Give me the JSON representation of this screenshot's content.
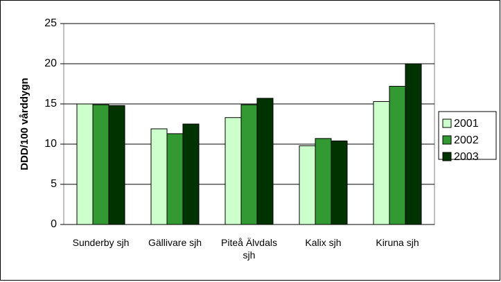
{
  "chart_data": {
    "type": "bar",
    "ylabel": "DDD/100 vårddygn",
    "categories": [
      "Sunderby sjh",
      "Gällivare sjh",
      "Piteå Älvdals sjh",
      "Kalix sjh",
      "Kiruna sjh"
    ],
    "series": [
      {
        "name": "2001",
        "color": "#ccffcc",
        "values": [
          15.0,
          11.9,
          13.3,
          9.8,
          15.3
        ]
      },
      {
        "name": "2002",
        "color": "#339933",
        "values": [
          14.9,
          11.3,
          14.9,
          10.7,
          17.2
        ]
      },
      {
        "name": "2003",
        "color": "#003300",
        "values": [
          14.8,
          12.5,
          15.7,
          10.4,
          20.0
        ]
      }
    ],
    "ylim": [
      0,
      25
    ],
    "yticks": [
      0,
      5,
      10,
      15,
      20,
      25
    ],
    "grid": true,
    "legend": "right"
  }
}
